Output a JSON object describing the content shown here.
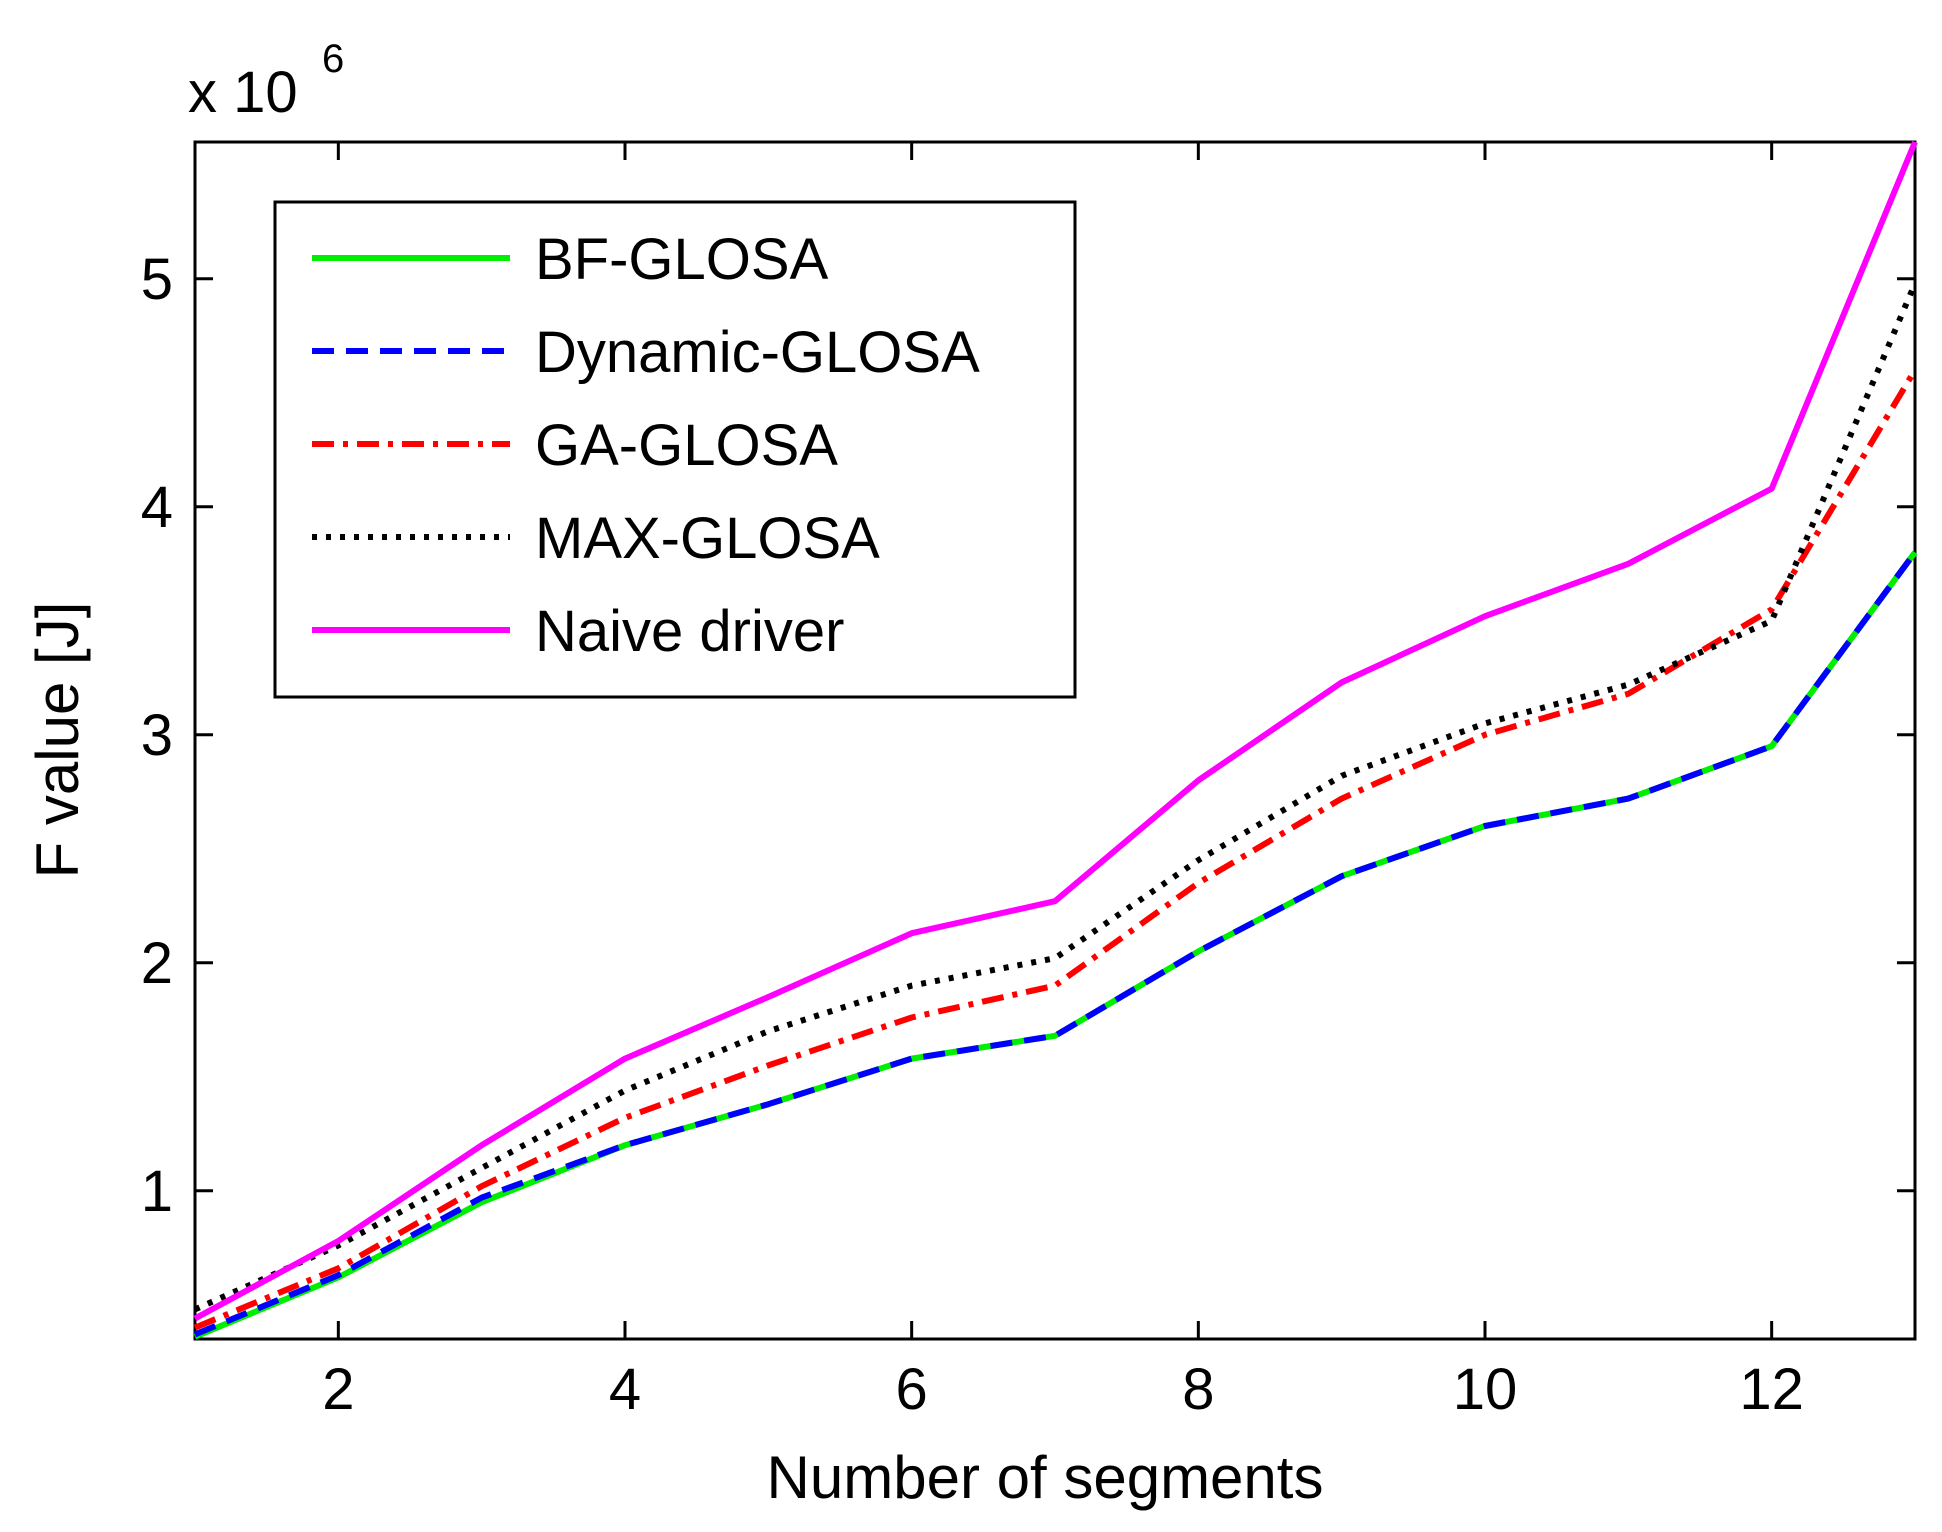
{
  "chart_data": {
    "type": "line",
    "title": "",
    "xlabel": "Number of segments",
    "ylabel": "F value [J]",
    "scale_label": "x 10",
    "scale_exponent": "6",
    "xlim": [
      1,
      13
    ],
    "ylim": [
      0.35,
      5.6
    ],
    "xticks": [
      2,
      4,
      6,
      8,
      10,
      12
    ],
    "yticks": [
      1,
      2,
      3,
      4,
      5
    ],
    "grid": false,
    "legend_position": "top-left",
    "x": [
      1,
      2,
      3,
      4,
      5,
      6,
      7,
      8,
      9,
      10,
      11,
      12,
      13
    ],
    "series": [
      {
        "name": "BF-GLOSA",
        "color": "#00ee00",
        "dash": "solid",
        "values": [
          0.36,
          0.62,
          0.95,
          1.2,
          1.38,
          1.58,
          1.68,
          2.05,
          2.38,
          2.6,
          2.72,
          2.95,
          3.8
        ]
      },
      {
        "name": "Dynamic-GLOSA",
        "color": "#0000ff",
        "dash": "dashed",
        "values": [
          0.37,
          0.63,
          0.97,
          1.2,
          1.38,
          1.58,
          1.68,
          2.05,
          2.38,
          2.6,
          2.72,
          2.95,
          3.8
        ]
      },
      {
        "name": "GA-GLOSA",
        "color": "#ff0000",
        "dash": "dashdot",
        "values": [
          0.4,
          0.66,
          1.02,
          1.32,
          1.55,
          1.76,
          1.9,
          2.35,
          2.72,
          3.0,
          3.18,
          3.55,
          4.6
        ]
      },
      {
        "name": "MAX-GLOSA",
        "color": "#000000",
        "dash": "dotted",
        "values": [
          0.48,
          0.76,
          1.1,
          1.44,
          1.7,
          1.9,
          2.02,
          2.45,
          2.82,
          3.05,
          3.22,
          3.5,
          4.98
        ]
      },
      {
        "name": "Naive driver",
        "color": "#ff00ff",
        "dash": "solid",
        "values": [
          0.44,
          0.78,
          1.2,
          1.58,
          1.85,
          2.13,
          2.27,
          2.8,
          3.23,
          3.52,
          3.75,
          4.08,
          5.6
        ]
      }
    ]
  }
}
